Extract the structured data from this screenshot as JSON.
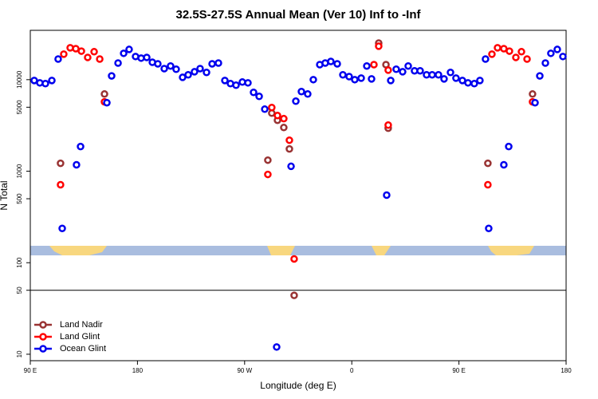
{
  "chart_data": {
    "type": "scatter",
    "title": "32.5S-27.5S Annual Mean (Ver 10)   Inf to -Inf",
    "x_label": "Longitude (deg E)",
    "y_label": "N Total",
    "xlim": [
      90,
      540
    ],
    "xticks": [
      {
        "value": 90,
        "label": "90 E"
      },
      {
        "value": 180,
        "label": "180"
      },
      {
        "value": 270,
        "label": "90 W"
      },
      {
        "value": 360,
        "label": "0"
      },
      {
        "value": 450,
        "label": "90 E"
      },
      {
        "value": 540,
        "label": "180"
      }
    ],
    "ylim": [
      8.5,
      34600
    ],
    "log_y": true,
    "yticks": [
      10,
      50,
      100,
      500,
      1000,
      5000,
      10000
    ],
    "reference_line": 50,
    "legend": "bottom-left",
    "series": [
      {
        "name": "Land Nadir",
        "color": "#993333",
        "x": [
          115.4,
          152.3,
          289.5,
          292.8,
          297.6,
          302.9,
          307.6,
          311.6,
          382.6,
          388.7,
          390.6,
          474.3,
          511.8
        ],
        "values": [
          1220,
          6970,
          1320,
          4310,
          3600,
          3000,
          1750,
          44,
          25100,
          14600,
          2950,
          1220,
          6970
        ]
      },
      {
        "name": "Land Glint",
        "color": "#ff0000",
        "x": [
          115.4,
          118.1,
          123.5,
          128.2,
          132.9,
          138.2,
          143.6,
          148.3,
          152.3,
          289.5,
          292.8,
          297.6,
          302.9,
          307.6,
          311.6,
          378.6,
          382.6,
          390.6,
          390.6,
          474.3,
          477.7,
          482.4,
          487.7,
          492.4,
          497.8,
          502.5,
          507.2,
          511.8
        ],
        "values": [
          711,
          19000,
          22300,
          21800,
          20500,
          17500,
          20200,
          16800,
          5720,
          922,
          4960,
          4060,
          3750,
          2180,
          110,
          14600,
          23200,
          12700,
          3190,
          711,
          19000,
          22300,
          21800,
          20500,
          17500,
          20200,
          16800,
          5720
        ]
      },
      {
        "name": "Ocean Glint",
        "color": "#0000ee",
        "x": [
          93.3,
          98.0,
          102.7,
          108.1,
          113.4,
          116.8,
          128.8,
          132.2,
          154.3,
          158.3,
          163.7,
          168.4,
          173.0,
          178.4,
          183.1,
          187.8,
          192.5,
          197.1,
          202.5,
          207.8,
          212.5,
          217.9,
          222.6,
          227.9,
          232.6,
          238.0,
          242.7,
          248.0,
          253.4,
          258.1,
          262.8,
          268.1,
          272.8,
          277.5,
          282.2,
          286.9,
          296.9,
          309.0,
          313.0,
          317.7,
          323.0,
          327.7,
          333.1,
          337.7,
          342.4,
          347.8,
          352.5,
          357.8,
          362.5,
          367.9,
          372.6,
          376.6,
          389.3,
          392.7,
          397.3,
          402.7,
          407.4,
          412.7,
          417.4,
          422.8,
          427.5,
          432.8,
          437.5,
          442.9,
          447.5,
          452.9,
          457.6,
          462.9,
          467.6,
          472.3,
          475.0,
          487.7,
          491.8,
          513.9,
          517.9,
          522.6,
          527.2,
          532.6,
          537.3
        ],
        "values": [
          9800,
          9230,
          9060,
          9800,
          16800,
          237,
          1175,
          1860,
          5600,
          11000,
          15200,
          19400,
          21400,
          17900,
          17200,
          17500,
          15500,
          14900,
          13200,
          14100,
          13000,
          10600,
          11300,
          12200,
          13200,
          12000,
          14900,
          15200,
          9800,
          9060,
          8700,
          9420,
          9230,
          7260,
          6570,
          4760,
          12,
          1130,
          5820,
          7410,
          6970,
          10000,
          14600,
          15200,
          15800,
          14900,
          11300,
          10800,
          10000,
          10400,
          14100,
          10200,
          548,
          9800,
          13000,
          12200,
          14100,
          12500,
          12500,
          11300,
          11300,
          11300,
          10200,
          12000,
          10400,
          9800,
          9230,
          9060,
          9800,
          16800,
          237,
          1175,
          1860,
          5600,
          11000,
          15200,
          19400,
          21400,
          17900
        ]
      }
    ]
  }
}
